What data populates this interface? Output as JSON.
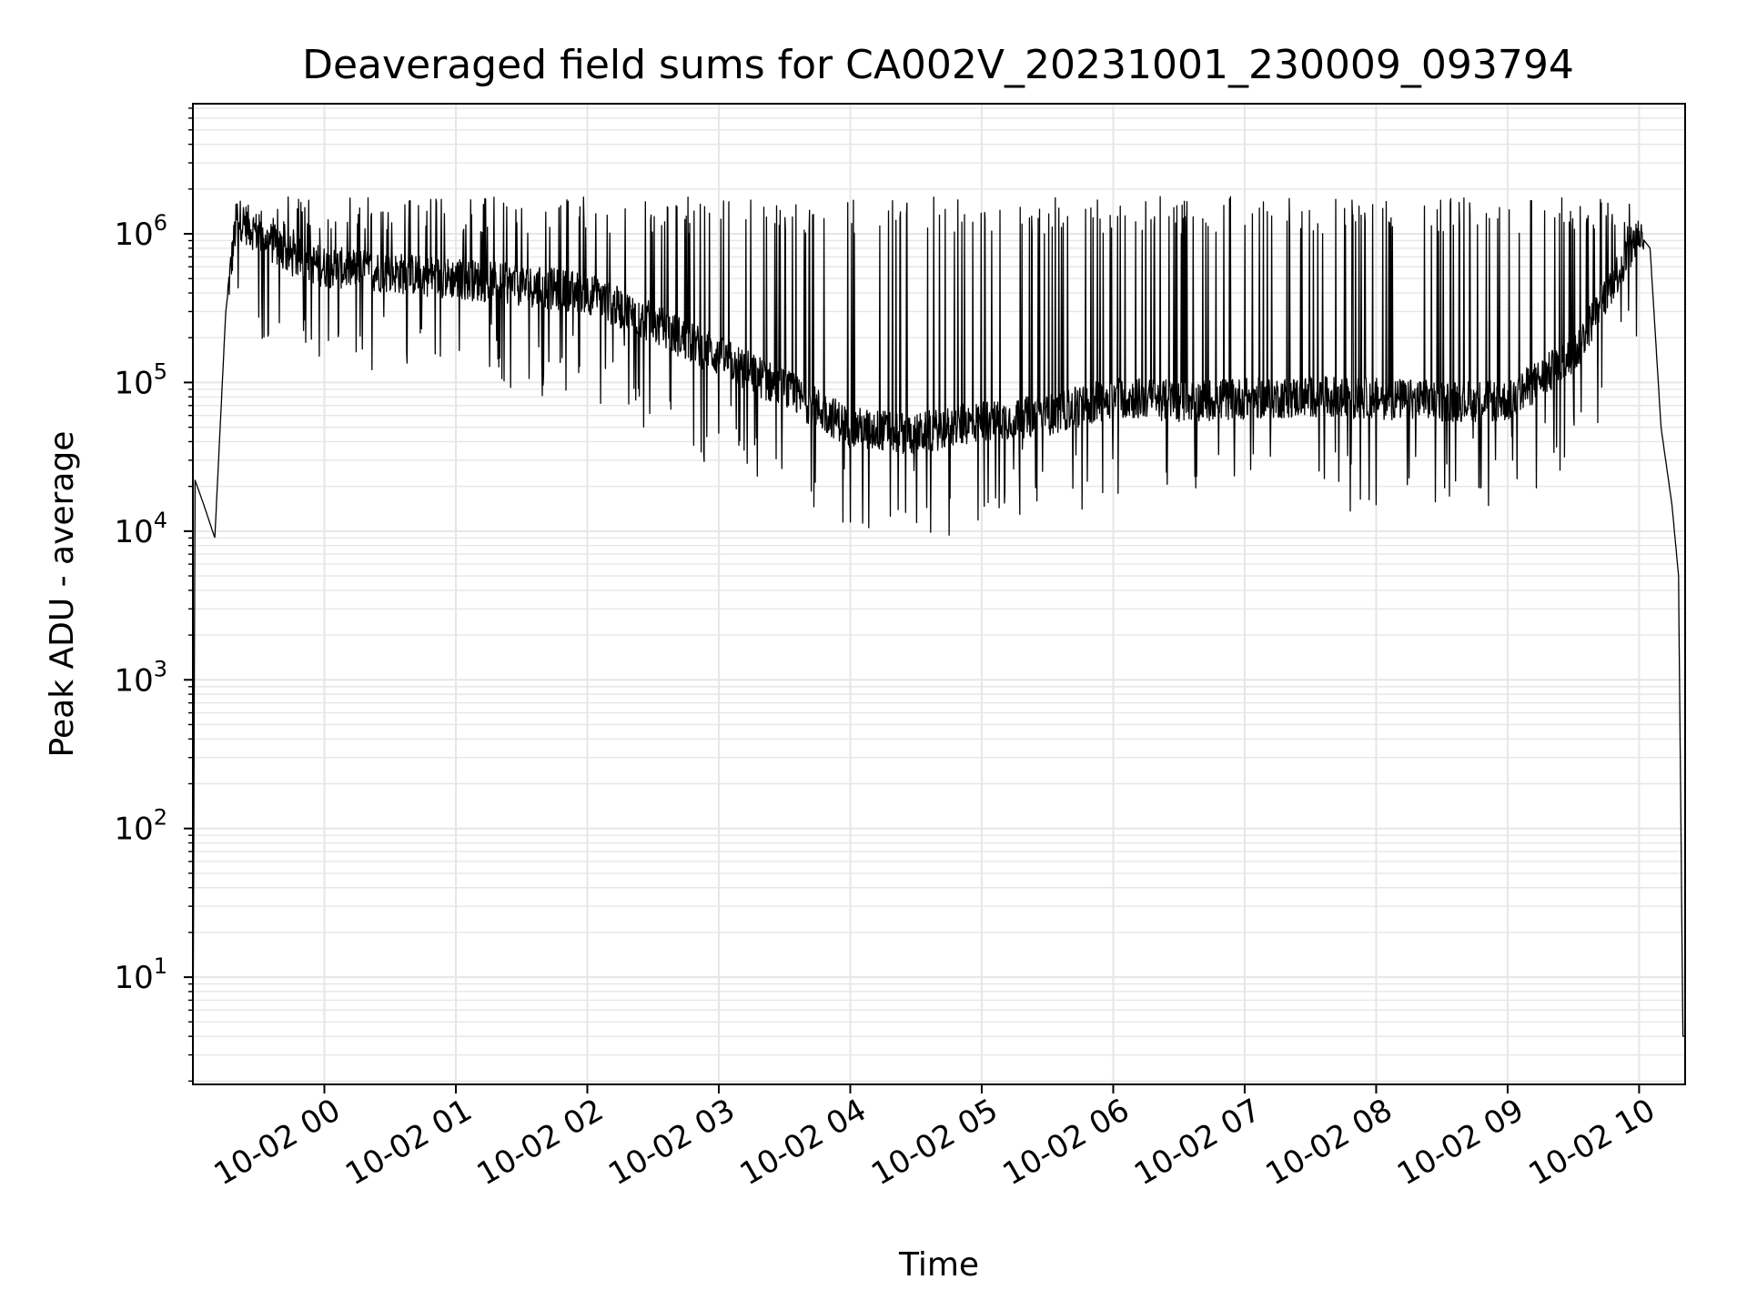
{
  "chart_data": {
    "type": "line",
    "title": "Deaveraged field sums for CA002V_20231001_230009_093794",
    "xlabel": "Time",
    "ylabel": "Peak ADU - average",
    "y_scale": "log",
    "ylim": [
      1.9,
      7500000
    ],
    "xlim": [
      "2023-10-01 23:00",
      "2023-10-02 10:21"
    ],
    "x_ticks": [
      {
        "value": "2023-10-02 00:00",
        "label": "10-02 00"
      },
      {
        "value": "2023-10-02 01:00",
        "label": "10-02 01"
      },
      {
        "value": "2023-10-02 02:00",
        "label": "10-02 02"
      },
      {
        "value": "2023-10-02 03:00",
        "label": "10-02 03"
      },
      {
        "value": "2023-10-02 04:00",
        "label": "10-02 04"
      },
      {
        "value": "2023-10-02 05:00",
        "label": "10-02 05"
      },
      {
        "value": "2023-10-02 06:00",
        "label": "10-02 06"
      },
      {
        "value": "2023-10-02 07:00",
        "label": "10-02 07"
      },
      {
        "value": "2023-10-02 08:00",
        "label": "10-02 08"
      },
      {
        "value": "2023-10-02 09:00",
        "label": "10-02 09"
      },
      {
        "value": "2023-10-02 10:00",
        "label": "10-02 10"
      }
    ],
    "y_ticks": [
      {
        "value": 10,
        "base": "10",
        "exp": "1"
      },
      {
        "value": 100,
        "base": "10",
        "exp": "2"
      },
      {
        "value": 1000,
        "base": "10",
        "exp": "3"
      },
      {
        "value": 10000,
        "base": "10",
        "exp": "4"
      },
      {
        "value": 100000,
        "base": "10",
        "exp": "5"
      },
      {
        "value": 1000000,
        "base": "10",
        "exp": "6"
      }
    ],
    "grid": true,
    "line_color": "#000000",
    "series": [
      {
        "x": [
          "2023-10-01 23:00",
          "2023-10-01 23:01",
          "2023-10-01 23:05",
          "2023-10-01 23:10",
          "2023-10-01 23:15",
          "2023-10-01 23:20",
          "2023-10-01 23:30",
          "2023-10-01 23:45",
          "2023-10-02 00:00",
          "2023-10-02 00:30",
          "2023-10-02 01:00",
          "2023-10-02 01:30",
          "2023-10-02 02:00",
          "2023-10-02 02:30",
          "2023-10-02 03:00",
          "2023-10-02 03:30",
          "2023-10-02 04:00",
          "2023-10-02 04:30",
          "2023-10-02 05:00",
          "2023-10-02 05:30",
          "2023-10-02 06:00",
          "2023-10-02 06:30",
          "2023-10-02 07:00",
          "2023-10-02 07:30",
          "2023-10-02 08:00",
          "2023-10-02 08:30",
          "2023-10-02 09:00",
          "2023-10-02 09:30",
          "2023-10-02 09:45",
          "2023-10-02 10:00",
          "2023-10-02 10:05",
          "2023-10-02 10:10",
          "2023-10-02 10:15",
          "2023-10-02 10:18",
          "2023-10-02 10:20",
          "2023-10-02 10:21"
        ],
        "y": [
          2,
          22000,
          15000,
          9000,
          300000,
          1300000,
          1000000,
          700000,
          600000,
          550000,
          500000,
          450000,
          400000,
          250000,
          150000,
          90000,
          50000,
          45000,
          55000,
          60000,
          80000,
          75000,
          78000,
          80000,
          78000,
          75000,
          75000,
          150000,
          400000,
          1000000,
          800000,
          50000,
          15000,
          5000,
          4,
          4
        ]
      }
    ]
  }
}
